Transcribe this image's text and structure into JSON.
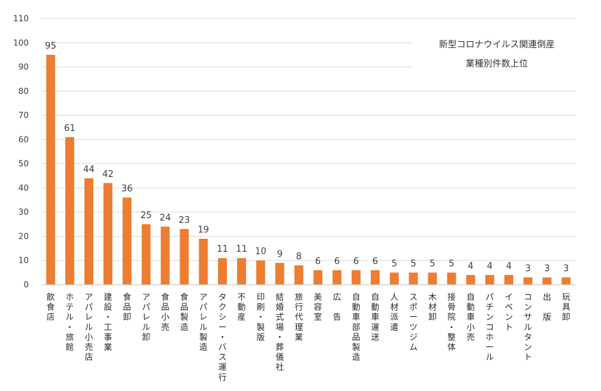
{
  "chart_data": {
    "type": "bar",
    "title": "",
    "xlabel": "",
    "ylabel": "",
    "ylim": [
      0,
      110
    ],
    "yticks": [
      0,
      10,
      20,
      30,
      40,
      50,
      60,
      70,
      80,
      90,
      100,
      110
    ],
    "grid": true,
    "color": "#ED7D31",
    "annotation": [
      "新型コロナウイルス関連倒産",
      "業種別件数上位"
    ],
    "categories": [
      "飲食店",
      "ホテル・旅館",
      "アパレル小売店",
      "建設・工事業",
      "食品卸",
      "アパレル卸",
      "食品小売",
      "食品製造",
      "アパレル製造",
      "タクシー・バス運行",
      "不動産",
      "印刷・製版",
      "結婚式場・葬儀社",
      "旅行代理業",
      "美容室",
      "広 告",
      "自動車部品製造",
      "自動車運送",
      "人材派遣",
      "スポーツジム",
      "木材卸",
      "接骨院・整体",
      "自動車小売",
      "パチンコホール",
      "イベント",
      "コンサルタント",
      "出 版",
      "玩具卸"
    ],
    "values": [
      95,
      61,
      44,
      42,
      36,
      25,
      24,
      23,
      19,
      11,
      11,
      10,
      9,
      8,
      6,
      6,
      6,
      6,
      5,
      5,
      5,
      5,
      4,
      4,
      4,
      3,
      3,
      3
    ]
  }
}
